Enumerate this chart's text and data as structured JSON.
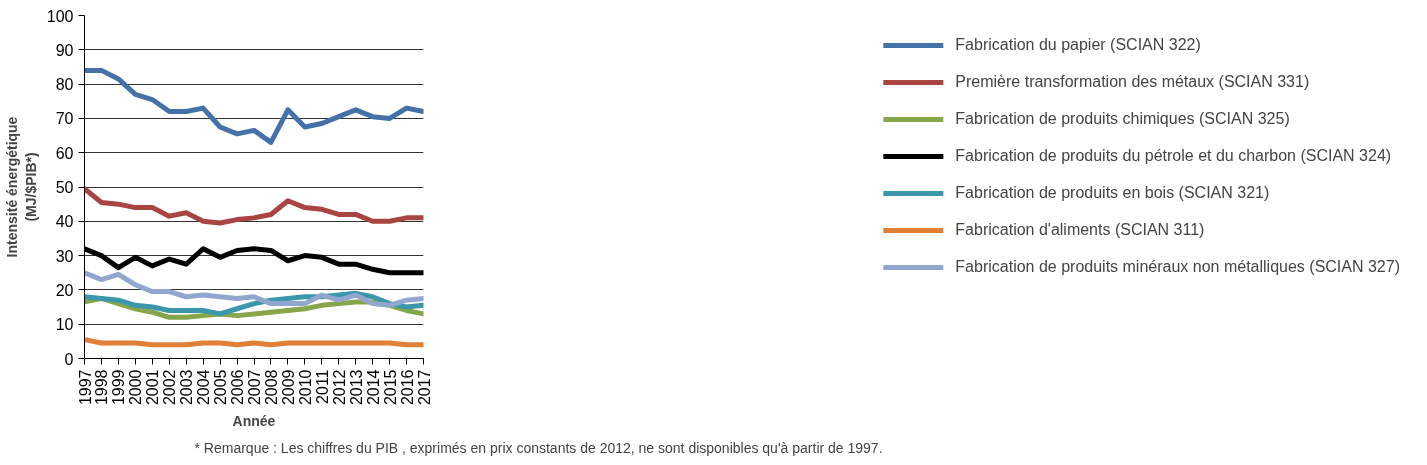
{
  "chart_data": {
    "type": "line",
    "xlabel": "Année",
    "ylabel": "Intensité énergétique\n(MJ/$PIB*)",
    "x": [
      1997,
      1998,
      1999,
      2000,
      2001,
      2002,
      2003,
      2004,
      2005,
      2006,
      2007,
      2008,
      2009,
      2010,
      2011,
      2012,
      2013,
      2014,
      2015,
      2016,
      2017
    ],
    "xlim": [
      1997,
      2017
    ],
    "xticks": [
      1997,
      1998,
      1999,
      2000,
      2001,
      2002,
      2003,
      2004,
      2005,
      2006,
      2007,
      2008,
      2009,
      2010,
      2011,
      2012,
      2013,
      2014,
      2015,
      2016,
      2017
    ],
    "ylim": [
      0,
      100
    ],
    "yticks": [
      0,
      10,
      20,
      30,
      40,
      50,
      60,
      70,
      80,
      90,
      100
    ],
    "grid": "y",
    "legend": "right",
    "marker": "none",
    "line_style": "solid",
    "series": [
      {
        "name": "Fabrication du papier (SCIAN 322)",
        "color": "#4472a8",
        "values": [
          84,
          84,
          81.5,
          77,
          75.5,
          72,
          72,
          73,
          67.5,
          65.5,
          66.5,
          63,
          72.5,
          67.5,
          68.5,
          70.5,
          72.5,
          70.5,
          70,
          73,
          72
        ]
      },
      {
        "name": "Première transformation des métaux (SCIAN 331)",
        "color": "#a84441",
        "values": [
          49.5,
          45.5,
          45,
          44,
          44,
          41.5,
          42.5,
          40,
          39.5,
          40.5,
          41,
          42,
          46,
          44,
          43.5,
          42,
          42,
          40,
          40,
          41,
          41
        ]
      },
      {
        "name": "Fabrication de produits chimiques (SCIAN 325)",
        "color": "#87a64a",
        "values": [
          16.5,
          17.5,
          16,
          14.5,
          13.5,
          12,
          12,
          12.5,
          13,
          12.5,
          13,
          13.5,
          14,
          14.5,
          15.5,
          16,
          16.5,
          16.5,
          15.5,
          14,
          13
        ]
      },
      {
        "name": "Fabrication de produits du pétrole et du charbon (SCIAN 324)",
        "color": "#000000",
        "values": [
          32,
          30,
          26.5,
          29.5,
          27,
          29,
          27.5,
          32,
          29.5,
          31.5,
          32,
          31.5,
          28.5,
          30,
          29.5,
          27.5,
          27.5,
          26,
          25,
          25,
          25
        ]
      },
      {
        "name": "Fabrication de produits en bois (SCIAN 321)",
        "color": "#3c97aa",
        "values": [
          18,
          17.5,
          17,
          15.5,
          15,
          14,
          14,
          14,
          13,
          14.5,
          16,
          17,
          17.5,
          18,
          18,
          18.5,
          19,
          18,
          16,
          15,
          15.5
        ]
      },
      {
        "name": "Fabrication d'aliments (SCIAN 311)",
        "color": "#e07f35",
        "values": [
          5.5,
          4.5,
          4.5,
          4.5,
          4,
          4,
          4,
          4.5,
          4.5,
          4,
          4.5,
          4,
          4.5,
          4.5,
          4.5,
          4.5,
          4.5,
          4.5,
          4.5,
          4,
          4
        ]
      },
      {
        "name": "Fabrication de produits minéraux non métalliques (SCIAN 327)",
        "color": "#91a7cf",
        "values": [
          25,
          23,
          24.5,
          21.5,
          19.5,
          19.5,
          18,
          18.5,
          18,
          17.5,
          18,
          16,
          16,
          16,
          18.5,
          17,
          18.5,
          16,
          15.5,
          17,
          17.5
        ]
      }
    ],
    "annotations": [
      "* Remarque : Les chiffres du PIB , exprimés en prix constants de 2012, ne sont disponibles qu'à partir de 1997."
    ]
  }
}
